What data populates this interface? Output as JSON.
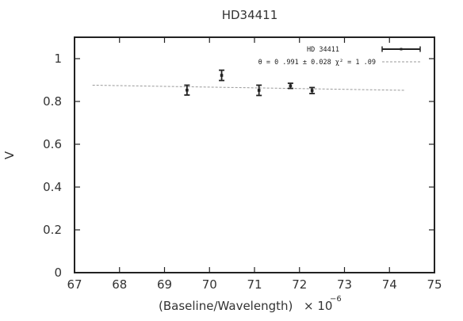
{
  "chart_data": {
    "type": "scatter",
    "title": "HD34411",
    "xlabel": "(Baseline/Wavelength)",
    "xlabel_exponent": "× 10",
    "xlabel_exponent_power": "−6",
    "ylabel": "V",
    "xlim": [
      67,
      75
    ],
    "ylim": [
      0,
      1.1
    ],
    "xticks": [
      "67",
      "68",
      "69",
      "70",
      "71",
      "72",
      "73",
      "74",
      "75"
    ],
    "yticks": [
      "0",
      "0.2",
      "0.4",
      "0.6",
      "0.8",
      "1"
    ],
    "grid": false,
    "legend_position": "top-right",
    "series": [
      {
        "name": "HD 34411",
        "style": "errorbars",
        "color": "#222222",
        "x": [
          69.5,
          70.27,
          71.1,
          71.8,
          72.28
        ],
        "y": [
          0.853,
          0.922,
          0.852,
          0.873,
          0.851
        ],
        "yerr": [
          0.023,
          0.024,
          0.024,
          0.012,
          0.014
        ]
      },
      {
        "name": "θ = 0 .991 ± 0.028  χ² = 1 .09",
        "style": "dashed-line",
        "color": "#999999",
        "x": [
          67.4,
          74.35
        ],
        "y": [
          0.876,
          0.852
        ]
      }
    ]
  }
}
